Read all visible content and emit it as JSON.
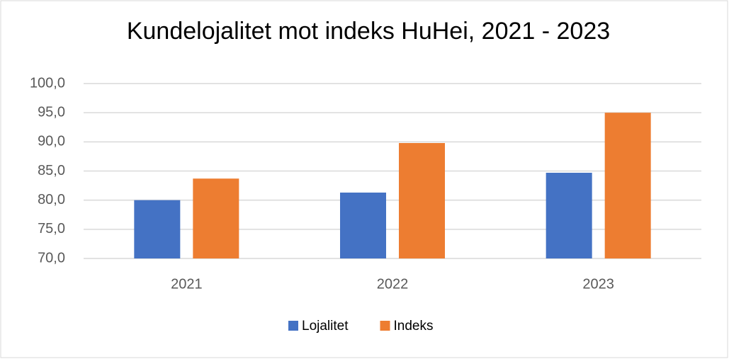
{
  "chart_data": {
    "type": "bar",
    "title": "Kundelojalitet mot indeks HuHei, 2021 - 2023",
    "categories": [
      "2021",
      "2022",
      "2023"
    ],
    "series": [
      {
        "name": "Lojalitet",
        "color": "#4472c4",
        "values": [
          80.0,
          81.3,
          84.7
        ]
      },
      {
        "name": "Indeks",
        "color": "#ed7d31",
        "values": [
          83.7,
          89.8,
          95.0
        ]
      }
    ],
    "ylim": [
      70,
      100
    ],
    "yticks": [
      {
        "value": 70,
        "label": "70,0"
      },
      {
        "value": 75,
        "label": "75,0"
      },
      {
        "value": 80,
        "label": "80,0"
      },
      {
        "value": 85,
        "label": "85,0"
      },
      {
        "value": 90,
        "label": "90,0"
      },
      {
        "value": 95,
        "label": "95,0"
      },
      {
        "value": 100,
        "label": "100,0"
      }
    ],
    "grid": true,
    "legend": "bottom"
  }
}
